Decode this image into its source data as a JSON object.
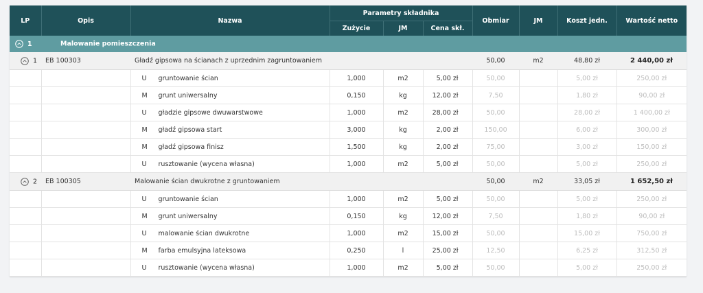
{
  "header": {
    "lp": "LP",
    "opis": "Opis",
    "nazwa": "Nazwa",
    "parametry": "Parametry składnika",
    "zuzycie": "Zużycie",
    "jm": "JM",
    "cena": "Cena skł.",
    "obmiar": "Obmiar",
    "jm2": "JM",
    "koszt": "Koszt jedn.",
    "wartosc": "Wartość netto"
  },
  "sections": [
    {
      "number": "1",
      "title": "Malowanie pomieszczenia",
      "groups": [
        {
          "lp": "1",
          "opis": "EB 100303",
          "nazwa": "Gładź gipsowa na ścianach z uprzednim zagruntowaniem",
          "obmiar": "50,00",
          "jm": "m2",
          "koszt": "48,80 zł",
          "wartosc": "2 440,00 zł",
          "items": [
            {
              "type": "U",
              "name": "gruntowanie ścian",
              "zuzycie": "1,000",
              "jm": "m2",
              "cena": "5,00 zł",
              "obmiar": "50,00",
              "koszt": "5,00 zł",
              "wartosc": "250,00 zł"
            },
            {
              "type": "M",
              "name": "grunt uniwersalny",
              "zuzycie": "0,150",
              "jm": "kg",
              "cena": "12,00 zł",
              "obmiar": "7,50",
              "koszt": "1,80 zł",
              "wartosc": "90,00 zł"
            },
            {
              "type": "U",
              "name": "gładzie gipsowe dwuwarstwowe",
              "zuzycie": "1,000",
              "jm": "m2",
              "cena": "28,00 zł",
              "obmiar": "50,00",
              "koszt": "28,00 zł",
              "wartosc": "1 400,00 zł"
            },
            {
              "type": "M",
              "name": "gładź gipsowa start",
              "zuzycie": "3,000",
              "jm": "kg",
              "cena": "2,00 zł",
              "obmiar": "150,00",
              "koszt": "6,00 zł",
              "wartosc": "300,00 zł"
            },
            {
              "type": "M",
              "name": "gładź gipsowa finisz",
              "zuzycie": "1,500",
              "jm": "kg",
              "cena": "2,00 zł",
              "obmiar": "75,00",
              "koszt": "3,00 zł",
              "wartosc": "150,00 zł"
            },
            {
              "type": "U",
              "name": "rusztowanie (wycena własna)",
              "zuzycie": "1,000",
              "jm": "m2",
              "cena": "5,00 zł",
              "obmiar": "50,00",
              "koszt": "5,00 zł",
              "wartosc": "250,00 zł"
            }
          ]
        },
        {
          "lp": "2",
          "opis": "EB 100305",
          "nazwa": "Malowanie ścian dwukrotne z gruntowaniem",
          "obmiar": "50,00",
          "jm": "m2",
          "koszt": "33,05 zł",
          "wartosc": "1 652,50 zł",
          "items": [
            {
              "type": "U",
              "name": "gruntowanie ścian",
              "zuzycie": "1,000",
              "jm": "m2",
              "cena": "5,00 zł",
              "obmiar": "50,00",
              "koszt": "5,00 zł",
              "wartosc": "250,00 zł"
            },
            {
              "type": "M",
              "name": "grunt uniwersalny",
              "zuzycie": "0,150",
              "jm": "kg",
              "cena": "12,00 zł",
              "obmiar": "7,50",
              "koszt": "1,80 zł",
              "wartosc": "90,00 zł"
            },
            {
              "type": "U",
              "name": "malowanie ścian dwukrotne",
              "zuzycie": "1,000",
              "jm": "m2",
              "cena": "15,00 zł",
              "obmiar": "50,00",
              "koszt": "15,00 zł",
              "wartosc": "750,00 zł"
            },
            {
              "type": "M",
              "name": "farba emulsyjna lateksowa",
              "zuzycie": "0,250",
              "jm": "l",
              "cena": "25,00 zł",
              "obmiar": "12,50",
              "koszt": "6,25 zł",
              "wartosc": "312,50 zł"
            },
            {
              "type": "U",
              "name": "rusztowanie (wycena własna)",
              "zuzycie": "1,000",
              "jm": "m2",
              "cena": "5,00 zł",
              "obmiar": "50,00",
              "koszt": "5,00 zł",
              "wartosc": "250,00 zł"
            }
          ]
        }
      ]
    }
  ]
}
